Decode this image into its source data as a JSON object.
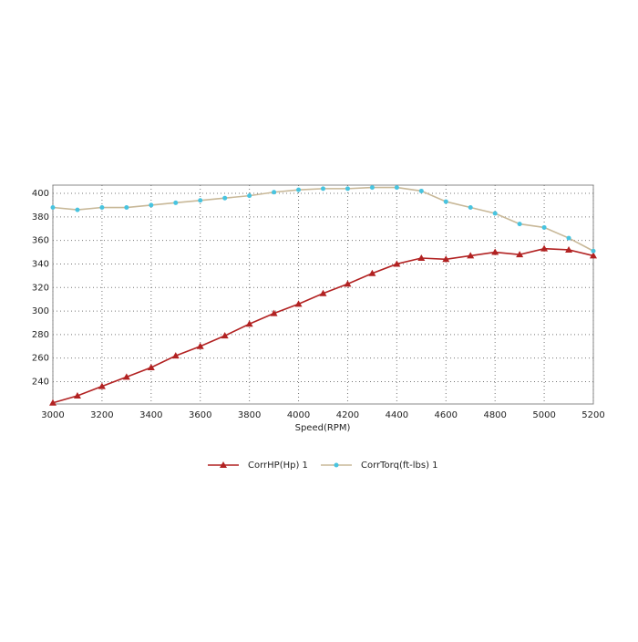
{
  "chart_data": {
    "type": "line",
    "x_label": "Speed(RPM)",
    "x": [
      3000,
      3100,
      3200,
      3300,
      3400,
      3500,
      3600,
      3700,
      3800,
      3900,
      4000,
      4100,
      4200,
      4300,
      4400,
      4500,
      4600,
      4700,
      4800,
      4900,
      5000,
      5100,
      5200
    ],
    "series": [
      {
        "name": "CorrHP(Hp)  1",
        "color": "#b22222",
        "marker_color": "#b22222",
        "marker": "triangle",
        "values": [
          222,
          228,
          236,
          244,
          252,
          262,
          270,
          279,
          289,
          298,
          306,
          315,
          323,
          332,
          340,
          345,
          344,
          347,
          350,
          348,
          353,
          352,
          347
        ]
      },
      {
        "name": "CorrTorq(ft-lbs)  1",
        "color": "#c8b898",
        "marker_color": "#48c4e0",
        "marker": "circle",
        "values": [
          388,
          386,
          388,
          388,
          390,
          392,
          394,
          396,
          398,
          401,
          403,
          404,
          404,
          405,
          405,
          402,
          393,
          388,
          383,
          374,
          371,
          362,
          351
        ]
      }
    ],
    "xlim": [
      3000,
      5200
    ],
    "xticks": [
      3000,
      3200,
      3400,
      3600,
      3800,
      4000,
      4200,
      4400,
      4600,
      4800,
      5000,
      5200
    ],
    "ylim": [
      221,
      407
    ],
    "yticks": [
      240,
      260,
      280,
      300,
      320,
      340,
      360,
      380,
      400
    ],
    "grid": true
  }
}
